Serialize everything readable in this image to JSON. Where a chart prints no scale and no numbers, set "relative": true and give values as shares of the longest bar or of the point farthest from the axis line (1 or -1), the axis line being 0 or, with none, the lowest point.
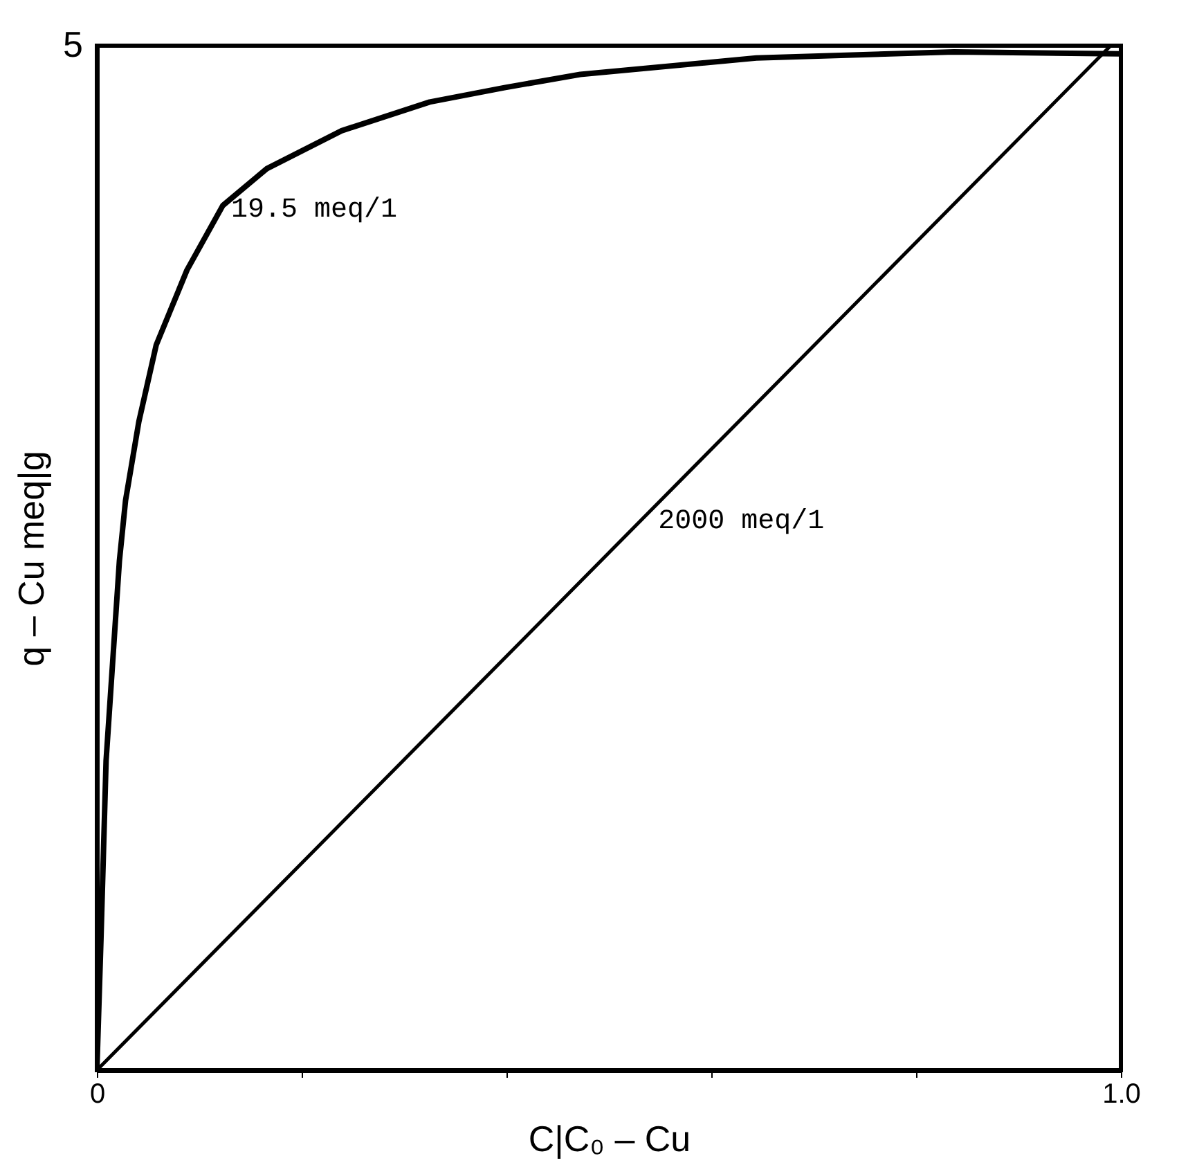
{
  "chart_data": {
    "type": "line",
    "xlabel": "C|C₀ – Cu",
    "ylabel": "q – Cu   meq|g",
    "relative": true,
    "xlim": [
      0,
      1.0
    ],
    "xticks": [
      {
        "value": 0,
        "label": "0"
      },
      {
        "value": 0.2,
        "label": null
      },
      {
        "value": 0.4,
        "label": null
      },
      {
        "value": 0.6,
        "label": null
      },
      {
        "value": 0.8,
        "label": null
      },
      {
        "value": 1.0,
        "label": "1.0"
      }
    ],
    "grid": false,
    "marker": "none",
    "line_style": "solid",
    "series": [
      {
        "color": "#000000",
        "x": [
          0,
          0.004,
          0.009,
          0.022,
          0.028,
          0.041,
          0.058,
          0.088,
          0.123,
          0.166,
          0.239,
          0.325,
          0.398,
          0.472,
          0.644,
          0.837,
          0.999
        ],
        "values": [
          0,
          0.128,
          0.302,
          0.497,
          0.556,
          0.633,
          0.708,
          0.781,
          0.844,
          0.88,
          0.917,
          0.945,
          0.959,
          0.972,
          0.988,
          0.994,
          0.992
        ]
      },
      {
        "color": "#000000",
        "x": [
          0,
          0.99
        ],
        "values": [
          0,
          1
        ]
      }
    ],
    "annotations": [
      "5",
      {
        "text": "19.5 meq/1",
        "x": 0.123,
        "y": 0.844
      },
      {
        "text": "2000 meq/1",
        "x": 0.54,
        "y": 0.54
      }
    ]
  }
}
